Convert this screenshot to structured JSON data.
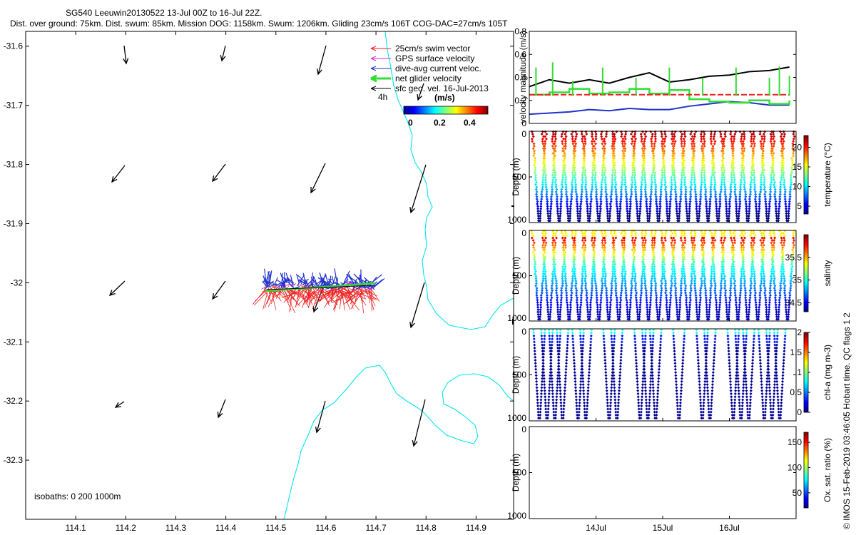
{
  "header": {
    "title": "SG540 Leeuwin20130522 13-Jul 00Z to 16-Jul 22Z.",
    "subtitle": "Dist. over ground: 75km. Dist. swum: 85km. Mission DOG: 1158km. Swum: 1206km. Gliding 23cm/s 106T COG-DAC=27cm/s 105T"
  },
  "map": {
    "x_ticks": [
      "114.1",
      "114.2",
      "114.3",
      "114.4",
      "114.5",
      "114.6",
      "114.7",
      "114.8",
      "114.9"
    ],
    "y_ticks": [
      "-31.6",
      "-31.7",
      "-31.8",
      "-31.9",
      "-32",
      "-32.1",
      "-32.2",
      "-32.3"
    ],
    "legend": [
      "25cm/s swim vector",
      "GPS surface velocity",
      "dive-avg current veloc.",
      "net glider velocity",
      "sfc geo. vel. 16-Jul-2013"
    ],
    "legend_colors": [
      "#ee2222",
      "#cc33cc",
      "#2233cc",
      "#33dd33",
      "#000000"
    ],
    "time_label": "4h",
    "cbar_unit": "(m/s)",
    "cbar_ticks": [
      "0",
      "0.2",
      "0.4"
    ],
    "isobaths": "isobaths: 0   200  1000m"
  },
  "chart_data": [
    {
      "type": "line",
      "title": "",
      "ylabel": "velocity magnitude (m/s)",
      "ylim": [
        0,
        0.8
      ],
      "y_ticks": [
        "0",
        "0.2",
        "0.4",
        "0.6",
        "0.8"
      ],
      "x": [
        13.0,
        13.3,
        13.6,
        13.9,
        14.2,
        14.5,
        14.8,
        15.1,
        15.4,
        15.7,
        16.0,
        16.3,
        16.6,
        16.9
      ],
      "series": [
        {
          "name": "sfc geo. vel.",
          "color": "#000000",
          "values": [
            0.32,
            0.38,
            0.35,
            0.38,
            0.35,
            0.4,
            0.44,
            0.36,
            0.38,
            0.41,
            0.42,
            0.45,
            0.46,
            0.49
          ]
        },
        {
          "name": "dive-avg current",
          "color": "#2233cc",
          "values": [
            0.08,
            0.09,
            0.1,
            0.12,
            0.11,
            0.13,
            0.12,
            0.12,
            0.15,
            0.17,
            0.19,
            0.18,
            0.16,
            0.16
          ]
        },
        {
          "name": "net glider velocity",
          "color": "#33dd33",
          "values": [
            0.25,
            0.27,
            0.3,
            0.26,
            0.27,
            0.3,
            0.26,
            0.29,
            0.21,
            0.19,
            0.18,
            0.2,
            0.17,
            0.2
          ]
        },
        {
          "name": "swim speed",
          "color": "#ee2222",
          "values": [
            0.25,
            0.25,
            0.25,
            0.25,
            0.25,
            0.25,
            0.25,
            0.25,
            0.25,
            0.25,
            0.25,
            0.25,
            0.25,
            0.25
          ]
        }
      ]
    },
    {
      "type": "scatter",
      "title": "temperature",
      "ylabel": "Depth (m)",
      "cbar_label": "temperature (°C)",
      "cbar_ticks": [
        "5",
        "10",
        "15",
        "20"
      ],
      "y_ticks": [
        "0",
        "500",
        "1000"
      ],
      "ylim": [
        0,
        1000
      ],
      "clim": [
        3,
        23
      ]
    },
    {
      "type": "scatter",
      "title": "salinity",
      "ylabel": "Depth (m)",
      "cbar_label": "salinity",
      "cbar_ticks": [
        "34.5",
        "35",
        "35.5"
      ],
      "y_ticks": [
        "0",
        "500",
        "1000"
      ],
      "ylim": [
        0,
        1000
      ],
      "clim": [
        34.3,
        36.0
      ]
    },
    {
      "type": "scatter",
      "title": "chl-a",
      "ylabel": "Depth (m)",
      "cbar_label": "chl-a (mg m-3)",
      "cbar_ticks": [
        "0",
        "0.5",
        "1",
        "1.5",
        "2"
      ],
      "y_ticks": [
        "0",
        "500",
        "1000"
      ],
      "ylim": [
        0,
        1000
      ],
      "clim": [
        0,
        2
      ]
    },
    {
      "type": "scatter",
      "title": "oxygen",
      "ylabel": "Depth (m)",
      "cbar_label": "Ox. sat. ratio (%)",
      "cbar_ticks": [
        "50",
        "100",
        "150"
      ],
      "y_ticks": [
        "0",
        "500",
        "1000"
      ],
      "ylim": [
        0,
        1000
      ],
      "clim": [
        20,
        170
      ]
    }
  ],
  "time_axis": {
    "ticks": [
      "14Jul",
      "15Jul",
      "16Jul"
    ],
    "tick_values": [
      14,
      15,
      16
    ],
    "range": [
      13,
      17
    ]
  },
  "footer": {
    "credit": "© IMOS 15-Feb-2019 03:46:05 Hobart time. QC flags 1  2"
  }
}
